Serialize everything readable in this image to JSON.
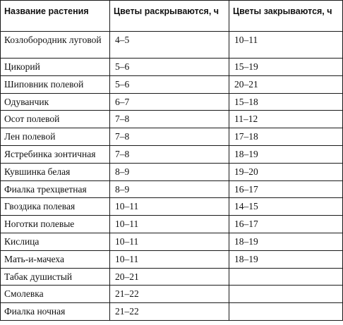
{
  "table": {
    "headers": {
      "name": "Название растения",
      "open": "Цветы раскрываются, ч",
      "close": "Цветы закрываются, ч"
    },
    "rows": [
      {
        "name": "Козлобородник луговой",
        "open": "4–5",
        "close": "10–11"
      },
      {
        "name": "Цикорий",
        "open": "5–6",
        "close": "15–19"
      },
      {
        "name": "Шиповник полевой",
        "open": "5–6",
        "close": "20–21"
      },
      {
        "name": "Одуванчик",
        "open": "6–7",
        "close": "15–18"
      },
      {
        "name": "Осот полевой",
        "open": "7–8",
        "close": "11–12"
      },
      {
        "name": "Лен полевой",
        "open": "7–8",
        "close": "17–18"
      },
      {
        "name": "Ястребинка зонтичная",
        "open": "7–8",
        "close": "18–19"
      },
      {
        "name": "Кувшинка белая",
        "open": "8–9",
        "close": "19–20"
      },
      {
        "name": "Фиалка трехцветная",
        "open": "8–9",
        "close": "16–17"
      },
      {
        "name": "Гвоздика полевая",
        "open": "10–11",
        "close": "14–15"
      },
      {
        "name": "Ноготки полевые",
        "open": "10–11",
        "close": "16–17"
      },
      {
        "name": "Кислица",
        "open": "10–11",
        "close": "18–19"
      },
      {
        "name": "Мать-и-мачеха",
        "open": "10–11",
        "close": "18–19"
      },
      {
        "name": "Табак душистый",
        "open": "20–21",
        "close": ""
      },
      {
        "name": "Смолевка",
        "open": "21–22",
        "close": ""
      },
      {
        "name": "Фиалка ночная",
        "open": "21–22",
        "close": ""
      }
    ]
  }
}
